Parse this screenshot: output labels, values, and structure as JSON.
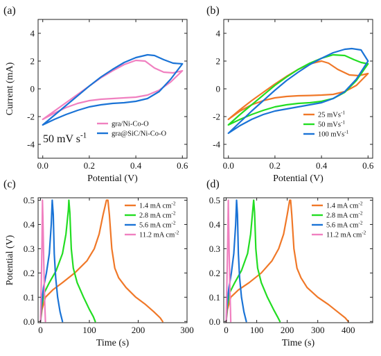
{
  "chart_data": [
    {
      "panel_label": "(a)",
      "type": "line",
      "xlabel": "Potential (V)",
      "ylabel": "Current (mA)",
      "xlim": [
        -0.02,
        0.62
      ],
      "ylim": [
        -5,
        5
      ],
      "xticks": [
        0.0,
        0.2,
        0.4,
        0.6
      ],
      "xtick_labels": [
        "0.0",
        "0.2",
        "0.4",
        "0.6"
      ],
      "yticks": [
        -4,
        -2,
        0,
        2,
        4
      ],
      "ytick_labels": [
        "-4",
        "-2",
        "0",
        "2",
        "4"
      ],
      "annotation": "50 mV s",
      "annotation_sup": "-1",
      "legend_position": "bottom-right",
      "series": [
        {
          "name": "gra/Ni-Co-O",
          "color": "#f080c0",
          "x": [
            0.0,
            0.05,
            0.1,
            0.15,
            0.2,
            0.25,
            0.3,
            0.35,
            0.4,
            0.44,
            0.48,
            0.52,
            0.56,
            0.6,
            0.6,
            0.55,
            0.5,
            0.45,
            0.4,
            0.35,
            0.3,
            0.25,
            0.2,
            0.15,
            0.1,
            0.05,
            0.0
          ],
          "y": [
            -2.2,
            -1.6,
            -1.0,
            -0.4,
            0.2,
            0.8,
            1.3,
            1.75,
            2.05,
            2.0,
            1.5,
            1.2,
            1.15,
            1.3,
            1.3,
            0.5,
            -0.1,
            -0.45,
            -0.6,
            -0.65,
            -0.7,
            -0.75,
            -0.85,
            -1.05,
            -1.35,
            -1.75,
            -2.2
          ]
        },
        {
          "name": "gra@SiC/Ni-Co-O",
          "color": "#1a73d6",
          "x": [
            0.0,
            0.05,
            0.1,
            0.15,
            0.2,
            0.25,
            0.3,
            0.35,
            0.4,
            0.45,
            0.48,
            0.52,
            0.56,
            0.6,
            0.6,
            0.55,
            0.5,
            0.45,
            0.4,
            0.35,
            0.3,
            0.25,
            0.2,
            0.15,
            0.1,
            0.05,
            0.0
          ],
          "y": [
            -2.6,
            -1.9,
            -1.2,
            -0.5,
            0.2,
            0.85,
            1.4,
            1.9,
            2.25,
            2.45,
            2.4,
            2.1,
            1.85,
            1.8,
            1.8,
            0.7,
            -0.2,
            -0.7,
            -0.9,
            -1.0,
            -1.05,
            -1.15,
            -1.3,
            -1.55,
            -1.85,
            -2.2,
            -2.6
          ]
        }
      ]
    },
    {
      "panel_label": "(b)",
      "type": "line",
      "xlabel": "Potential (V)",
      "ylabel": "",
      "xlim": [
        -0.02,
        0.62
      ],
      "ylim": [
        -5,
        5
      ],
      "xticks": [
        0.0,
        0.2,
        0.4,
        0.6
      ],
      "xtick_labels": [
        "0.0",
        "0.2",
        "0.4",
        "0.6"
      ],
      "yticks": [
        -4,
        -2,
        0,
        2,
        4
      ],
      "ytick_labels": [
        "-4",
        "-2",
        "0",
        "2",
        "4"
      ],
      "legend_position": "bottom-right",
      "series": [
        {
          "name": "25 mVs",
          "name_sup": "-1",
          "color": "#f07828",
          "x": [
            0.0,
            0.05,
            0.1,
            0.15,
            0.2,
            0.25,
            0.3,
            0.35,
            0.4,
            0.43,
            0.47,
            0.52,
            0.56,
            0.6,
            0.6,
            0.55,
            0.5,
            0.45,
            0.4,
            0.35,
            0.3,
            0.25,
            0.2,
            0.15,
            0.1,
            0.05,
            0.0
          ],
          "y": [
            -2.2,
            -1.5,
            -0.85,
            -0.25,
            0.35,
            0.9,
            1.4,
            1.8,
            2.0,
            1.85,
            1.4,
            1.0,
            0.95,
            1.1,
            1.1,
            0.25,
            -0.2,
            -0.4,
            -0.45,
            -0.48,
            -0.5,
            -0.55,
            -0.65,
            -0.85,
            -1.15,
            -1.6,
            -2.2
          ]
        },
        {
          "name": "50 mVs",
          "name_sup": "-1",
          "color": "#22dd22",
          "x": [
            0.0,
            0.05,
            0.1,
            0.15,
            0.2,
            0.25,
            0.3,
            0.35,
            0.4,
            0.45,
            0.5,
            0.54,
            0.57,
            0.6,
            0.6,
            0.55,
            0.5,
            0.45,
            0.4,
            0.35,
            0.3,
            0.25,
            0.2,
            0.15,
            0.1,
            0.05,
            0.0
          ],
          "y": [
            -2.6,
            -1.85,
            -1.15,
            -0.45,
            0.25,
            0.85,
            1.4,
            1.85,
            2.2,
            2.45,
            2.4,
            2.1,
            1.9,
            1.8,
            1.8,
            0.6,
            -0.25,
            -0.7,
            -0.9,
            -1.0,
            -1.05,
            -1.15,
            -1.3,
            -1.55,
            -1.85,
            -2.2,
            -2.6
          ]
        },
        {
          "name": "100 mVs",
          "name_sup": "-1",
          "color": "#1a73d6",
          "x": [
            0.0,
            0.05,
            0.1,
            0.15,
            0.2,
            0.25,
            0.3,
            0.35,
            0.4,
            0.45,
            0.5,
            0.53,
            0.57,
            0.6,
            0.6,
            0.55,
            0.5,
            0.45,
            0.4,
            0.35,
            0.3,
            0.25,
            0.2,
            0.15,
            0.1,
            0.05,
            0.0
          ],
          "y": [
            -3.2,
            -2.4,
            -1.6,
            -0.85,
            -0.1,
            0.6,
            1.2,
            1.75,
            2.2,
            2.6,
            2.85,
            2.9,
            2.8,
            2.0,
            2.0,
            0.7,
            -0.2,
            -0.7,
            -1.0,
            -1.15,
            -1.3,
            -1.45,
            -1.6,
            -1.85,
            -2.2,
            -2.65,
            -3.2
          ]
        }
      ]
    },
    {
      "panel_label": "(c)",
      "type": "line",
      "xlabel": "Time (s)",
      "ylabel": "Potential (V)",
      "xlim": [
        -5,
        300
      ],
      "ylim": [
        -0.005,
        0.51
      ],
      "xticks": [
        0,
        100,
        200,
        300
      ],
      "xtick_labels": [
        "0",
        "100",
        "200",
        "300"
      ],
      "yticks": [
        0.0,
        0.1,
        0.2,
        0.3,
        0.4,
        0.5
      ],
      "ytick_labels": [
        "0.0",
        "0.1",
        "0.2",
        "0.3",
        "0.4",
        "0.5"
      ],
      "legend_position": "top-right",
      "series": [
        {
          "name": "1.4 mA cm",
          "name_sup": "-2",
          "color": "#f07828",
          "x": [
            0,
            3,
            10,
            25,
            45,
            70,
            95,
            110,
            120,
            128,
            135,
            138,
            141,
            146,
            152,
            160,
            175,
            195,
            215,
            232,
            245,
            250
          ],
          "y": [
            0.0,
            0.05,
            0.1,
            0.13,
            0.16,
            0.2,
            0.25,
            0.3,
            0.36,
            0.44,
            0.5,
            0.5,
            0.44,
            0.3,
            0.22,
            0.18,
            0.14,
            0.1,
            0.07,
            0.04,
            0.015,
            0.0
          ]
        },
        {
          "name": "2.8 mA cm",
          "name_sup": "-2",
          "color": "#22dd22",
          "x": [
            0,
            2,
            8,
            18,
            32,
            45,
            52,
            57,
            58,
            60,
            63,
            67,
            75,
            88,
            100,
            108,
            112
          ],
          "y": [
            0.0,
            0.06,
            0.12,
            0.16,
            0.21,
            0.28,
            0.36,
            0.46,
            0.5,
            0.45,
            0.3,
            0.22,
            0.16,
            0.1,
            0.05,
            0.02,
            0.0
          ]
        },
        {
          "name": "5.6 mA cm",
          "name_sup": "-2",
          "color": "#1a73d6",
          "x": [
            0,
            2,
            6,
            12,
            18,
            22,
            24,
            26,
            28,
            31,
            35,
            40,
            45
          ],
          "y": [
            0.0,
            0.07,
            0.14,
            0.2,
            0.28,
            0.4,
            0.5,
            0.44,
            0.28,
            0.18,
            0.1,
            0.04,
            0.0
          ]
        },
        {
          "name": "11.2 mA cm",
          "name_sup": "-2",
          "color": "#f080c0",
          "x": [
            0,
            1,
            2,
            3,
            4,
            5,
            6,
            7,
            8,
            9,
            10
          ],
          "y": [
            0.0,
            0.1,
            0.2,
            0.32,
            0.5,
            0.42,
            0.3,
            0.2,
            0.12,
            0.05,
            0.0
          ]
        }
      ]
    },
    {
      "panel_label": "(d)",
      "type": "line",
      "xlabel": "Time (s)",
      "ylabel": "",
      "xlim": [
        -8,
        480
      ],
      "ylim": [
        -0.005,
        0.51
      ],
      "xticks": [
        0,
        100,
        200,
        300,
        400
      ],
      "xtick_labels": [
        "0",
        "100",
        "200",
        "300",
        "400"
      ],
      "yticks": [
        0.0,
        0.1,
        0.2,
        0.3,
        0.4,
        0.5
      ],
      "ytick_labels": [
        "0.0",
        "0.1",
        "0.2",
        "0.3",
        "0.4",
        "0.5"
      ],
      "legend_position": "top-right",
      "series": [
        {
          "name": "1.4 mA cm",
          "name_sup": "-2",
          "color": "#f07828",
          "x": [
            0,
            4,
            15,
            40,
            75,
            115,
            150,
            172,
            188,
            200,
            208,
            211,
            215,
            222,
            232,
            245,
            265,
            300,
            335,
            365,
            390,
            400
          ],
          "y": [
            0.0,
            0.05,
            0.1,
            0.13,
            0.16,
            0.2,
            0.25,
            0.3,
            0.36,
            0.44,
            0.5,
            0.5,
            0.44,
            0.3,
            0.22,
            0.18,
            0.14,
            0.1,
            0.07,
            0.04,
            0.015,
            0.0
          ]
        },
        {
          "name": "2.8 mA cm",
          "name_sup": "-2",
          "color": "#22dd22",
          "x": [
            0,
            3,
            12,
            28,
            50,
            70,
            80,
            87,
            90,
            93,
            97,
            103,
            115,
            135,
            155,
            168,
            176
          ],
          "y": [
            0.0,
            0.06,
            0.12,
            0.16,
            0.21,
            0.28,
            0.36,
            0.46,
            0.5,
            0.45,
            0.3,
            0.22,
            0.16,
            0.1,
            0.05,
            0.02,
            0.0
          ]
        },
        {
          "name": "5.6 mA cm",
          "name_sup": "-2",
          "color": "#1a73d6",
          "x": [
            0,
            3,
            9,
            17,
            25,
            31,
            34,
            37,
            40,
            44,
            50,
            58,
            66
          ],
          "y": [
            0.0,
            0.07,
            0.14,
            0.2,
            0.28,
            0.4,
            0.5,
            0.44,
            0.28,
            0.18,
            0.1,
            0.04,
            0.0
          ]
        },
        {
          "name": "11.2 mA cm",
          "name_sup": "-2",
          "color": "#f080c0",
          "x": [
            0,
            1.5,
            3,
            5,
            7,
            8,
            9.5,
            11,
            12.5,
            14,
            15
          ],
          "y": [
            0.0,
            0.1,
            0.2,
            0.32,
            0.5,
            0.42,
            0.3,
            0.2,
            0.12,
            0.05,
            0.0
          ]
        }
      ]
    }
  ]
}
